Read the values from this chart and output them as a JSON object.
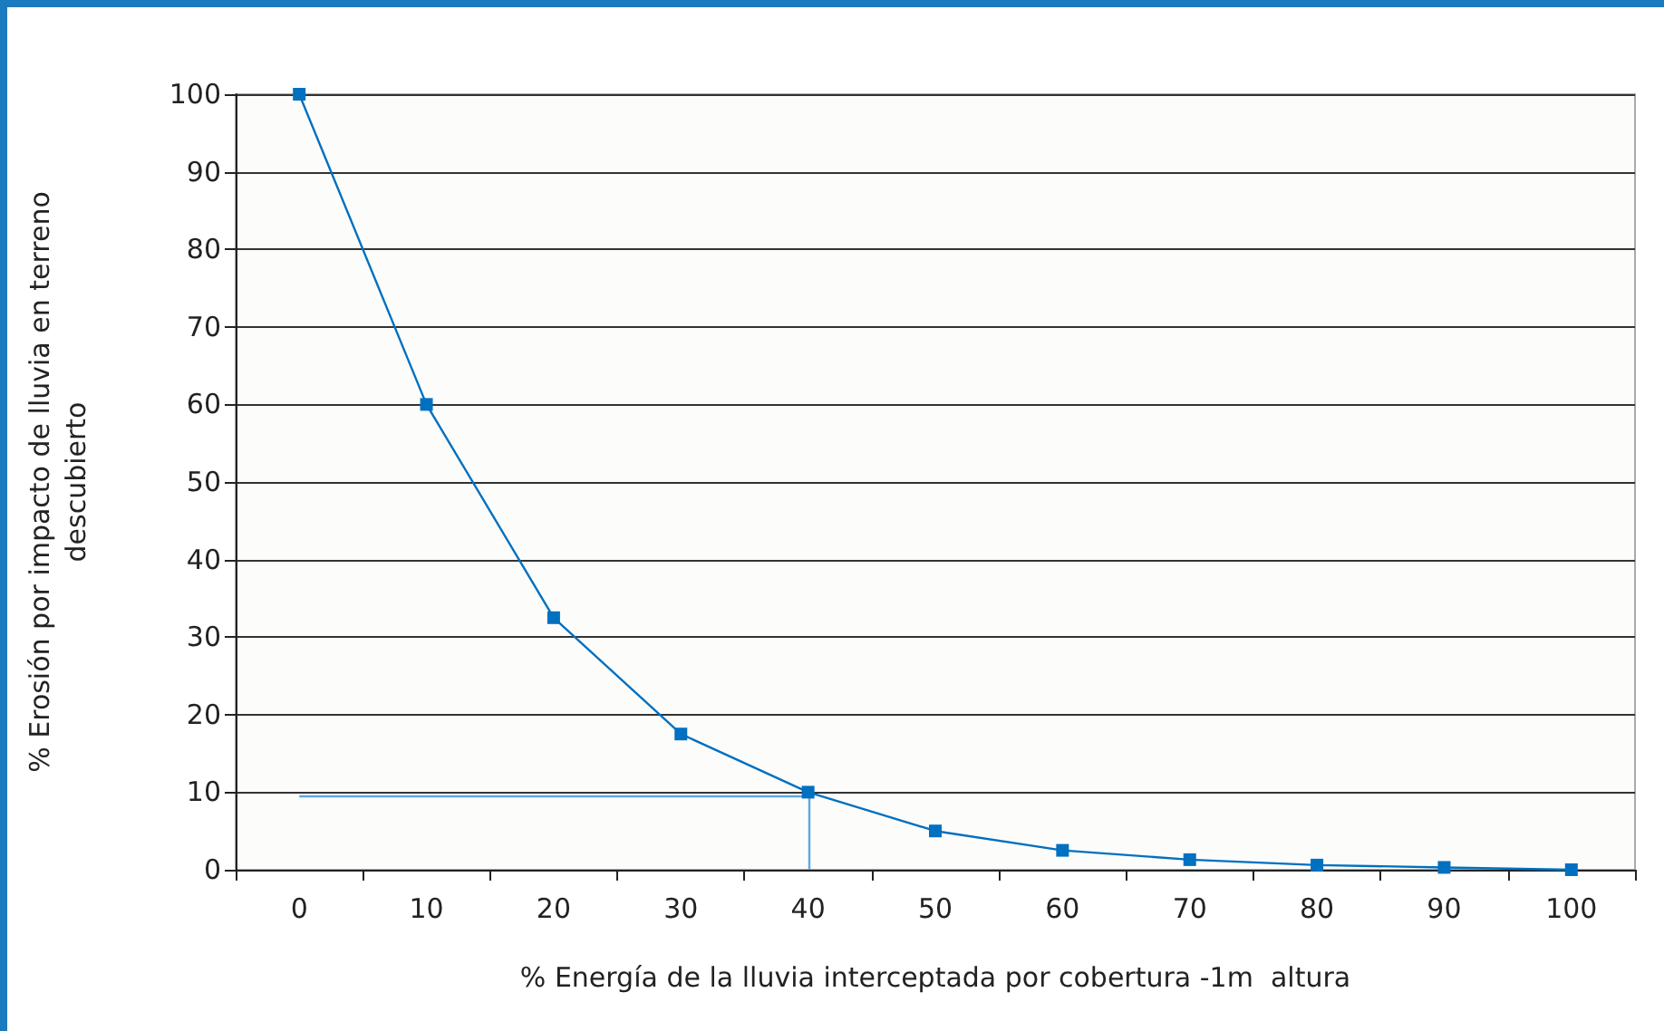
{
  "chart_data": {
    "type": "line",
    "xlabel": "% Energía de la lluvia interceptada por cobertura -1m  altura",
    "ylabel": "% Erosión por impacto de lluvia en terreno\ndescubierto",
    "categories": [
      "0",
      "10",
      "20",
      "30",
      "40",
      "50",
      "60",
      "70",
      "80",
      "90",
      "100"
    ],
    "series": [
      {
        "color": "#0070c0",
        "values": [
          100,
          60,
          32.5,
          17.5,
          10,
          5,
          2.5,
          1.3,
          0.6,
          0.3,
          0
        ]
      }
    ],
    "ylim": [
      0,
      100
    ],
    "yticks": [
      0,
      10,
      20,
      30,
      40,
      50,
      60,
      70,
      80,
      90,
      100
    ],
    "grid": "y",
    "marker": "square",
    "line_style": "solid",
    "ref_lines": [
      {
        "axis": "y",
        "value": 9.5,
        "color": "#5aa9e6"
      },
      {
        "axis": "x",
        "value": "40",
        "color": "#5aa9e6"
      }
    ]
  }
}
